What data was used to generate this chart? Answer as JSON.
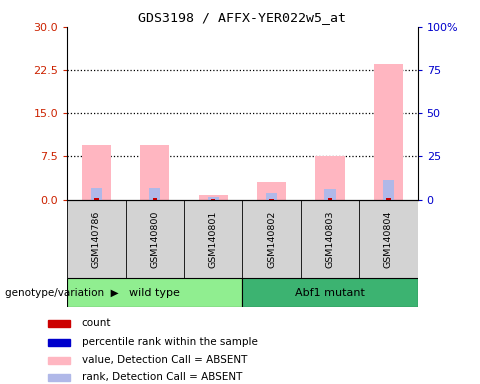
{
  "title": "GDS3198 / AFFX-YER022w5_at",
  "samples": [
    "GSM140786",
    "GSM140800",
    "GSM140801",
    "GSM140802",
    "GSM140803",
    "GSM140804"
  ],
  "groups": [
    {
      "name": "wild type",
      "indices": [
        0,
        1,
        2
      ],
      "color": "#90ee90"
    },
    {
      "name": "Abf1 mutant",
      "indices": [
        3,
        4,
        5
      ],
      "color": "#3cb371"
    }
  ],
  "pink_bars": [
    9.5,
    9.5,
    0.8,
    3.0,
    7.5,
    23.5
  ],
  "red_bars": [
    0.25,
    0.25,
    0.04,
    0.12,
    0.25,
    0.25
  ],
  "blue_bars": [
    2.0,
    2.0,
    0.5,
    1.2,
    1.8,
    3.5
  ],
  "left_yticks": [
    0,
    7.5,
    15,
    22.5,
    30
  ],
  "right_yticks": [
    0,
    25,
    50,
    75,
    100
  ],
  "right_ylabels": [
    "0",
    "25",
    "50",
    "75",
    "100%"
  ],
  "ylim": [
    0,
    30
  ],
  "left_color": "#cc2200",
  "right_color": "#0000cc",
  "sample_bg": "#d3d3d3",
  "legend_items": [
    {
      "color": "#cc0000",
      "label": "count"
    },
    {
      "color": "#0000cc",
      "label": "percentile rank within the sample"
    },
    {
      "color": "#ffb6c1",
      "label": "value, Detection Call = ABSENT"
    },
    {
      "color": "#b0b8e8",
      "label": "rank, Detection Call = ABSENT"
    }
  ],
  "genotype_label": "genotype/variation"
}
